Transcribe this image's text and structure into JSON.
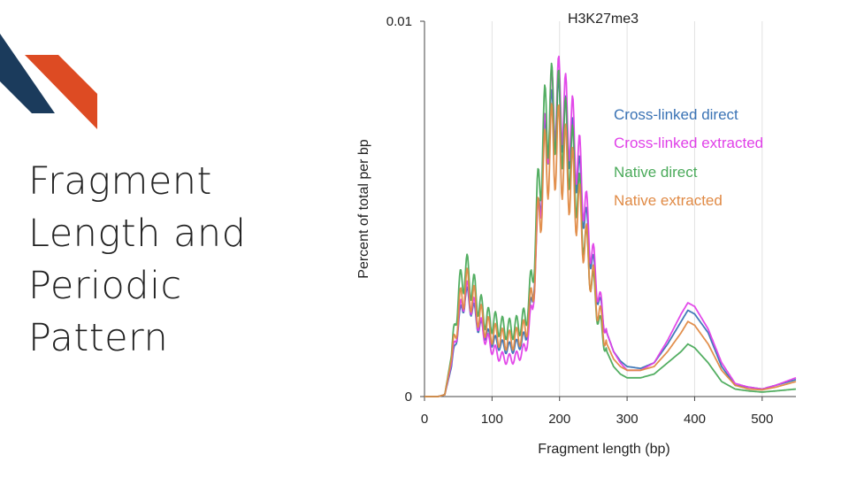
{
  "slide": {
    "title_lines": [
      "Fragment",
      "Length and",
      "Periodic",
      "Pattern"
    ],
    "accent_colors": {
      "navy": "#1b3b5c",
      "orange": "#dd4b23"
    }
  },
  "chart_data": {
    "type": "line",
    "title": "H3K27me3",
    "xlabel": "Fragment length (bp)",
    "ylabel": "Percent of total per bp",
    "xlim": [
      0,
      550
    ],
    "ylim": [
      0,
      0.01
    ],
    "x_ticks": [
      "0",
      "100",
      "200",
      "300",
      "400",
      "500"
    ],
    "y_ticks": [
      "0",
      "0.01"
    ],
    "grid": "vertical",
    "legend_position": "top-right",
    "x": [
      0,
      20,
      30,
      40,
      50,
      60,
      70,
      80,
      90,
      100,
      110,
      120,
      130,
      140,
      150,
      160,
      170,
      180,
      190,
      200,
      210,
      220,
      230,
      240,
      250,
      260,
      270,
      280,
      290,
      300,
      320,
      340,
      360,
      380,
      390,
      400,
      420,
      440,
      460,
      480,
      500,
      520,
      550
    ],
    "series": [
      {
        "name": "Cross-linked direct",
        "color": "#3a73b5",
        "values": [
          0,
          0,
          5e-05,
          0.0008,
          0.0019,
          0.0027,
          0.0024,
          0.0019,
          0.0017,
          0.0015,
          0.0014,
          0.0013,
          0.0013,
          0.0014,
          0.0016,
          0.0026,
          0.0052,
          0.0069,
          0.0074,
          0.0076,
          0.0071,
          0.0066,
          0.0057,
          0.0045,
          0.0034,
          0.0024,
          0.0017,
          0.0012,
          0.00095,
          0.0008,
          0.00075,
          0.0009,
          0.0014,
          0.002,
          0.0023,
          0.0022,
          0.0017,
          0.0008,
          0.0003,
          0.00025,
          0.0002,
          0.0003,
          0.00045
        ]
      },
      {
        "name": "Cross-linked extracted",
        "color": "#e040e8",
        "values": [
          0,
          0,
          5e-05,
          0.0009,
          0.002,
          0.0028,
          0.0025,
          0.002,
          0.0016,
          0.0013,
          0.0011,
          0.001,
          0.001,
          0.0011,
          0.0013,
          0.0024,
          0.0051,
          0.007,
          0.0078,
          0.008,
          0.0075,
          0.007,
          0.0061,
          0.0048,
          0.0036,
          0.0025,
          0.0017,
          0.0012,
          0.0009,
          0.0007,
          0.0007,
          0.0009,
          0.0015,
          0.0022,
          0.0025,
          0.0024,
          0.0018,
          0.0009,
          0.00035,
          0.00025,
          0.0002,
          0.0003,
          0.0005
        ]
      },
      {
        "name": "Native direct",
        "color": "#4aaa5a",
        "values": [
          0,
          0,
          5e-05,
          0.0011,
          0.0027,
          0.0034,
          0.003,
          0.0025,
          0.0021,
          0.002,
          0.0019,
          0.0018,
          0.0018,
          0.0019,
          0.0021,
          0.0032,
          0.0058,
          0.0075,
          0.0077,
          0.0075,
          0.0068,
          0.0062,
          0.0051,
          0.0039,
          0.0029,
          0.0019,
          0.0012,
          0.0008,
          0.0006,
          0.0005,
          0.0005,
          0.0006,
          0.0009,
          0.0012,
          0.0014,
          0.0013,
          0.0009,
          0.0004,
          0.0002,
          0.00015,
          0.00012,
          0.00015,
          0.0002
        ]
      },
      {
        "name": "Native extracted",
        "color": "#e08a45",
        "values": [
          0,
          0,
          5e-05,
          0.001,
          0.0022,
          0.003,
          0.0027,
          0.0022,
          0.0019,
          0.0017,
          0.0016,
          0.0015,
          0.0015,
          0.0016,
          0.0018,
          0.0027,
          0.005,
          0.0063,
          0.0067,
          0.0066,
          0.0061,
          0.0056,
          0.0048,
          0.0039,
          0.003,
          0.0021,
          0.0014,
          0.001,
          0.0008,
          0.0007,
          0.0007,
          0.0008,
          0.0012,
          0.0017,
          0.002,
          0.0019,
          0.0014,
          0.0007,
          0.0003,
          0.0002,
          0.00018,
          0.00025,
          0.0004
        ]
      }
    ]
  }
}
